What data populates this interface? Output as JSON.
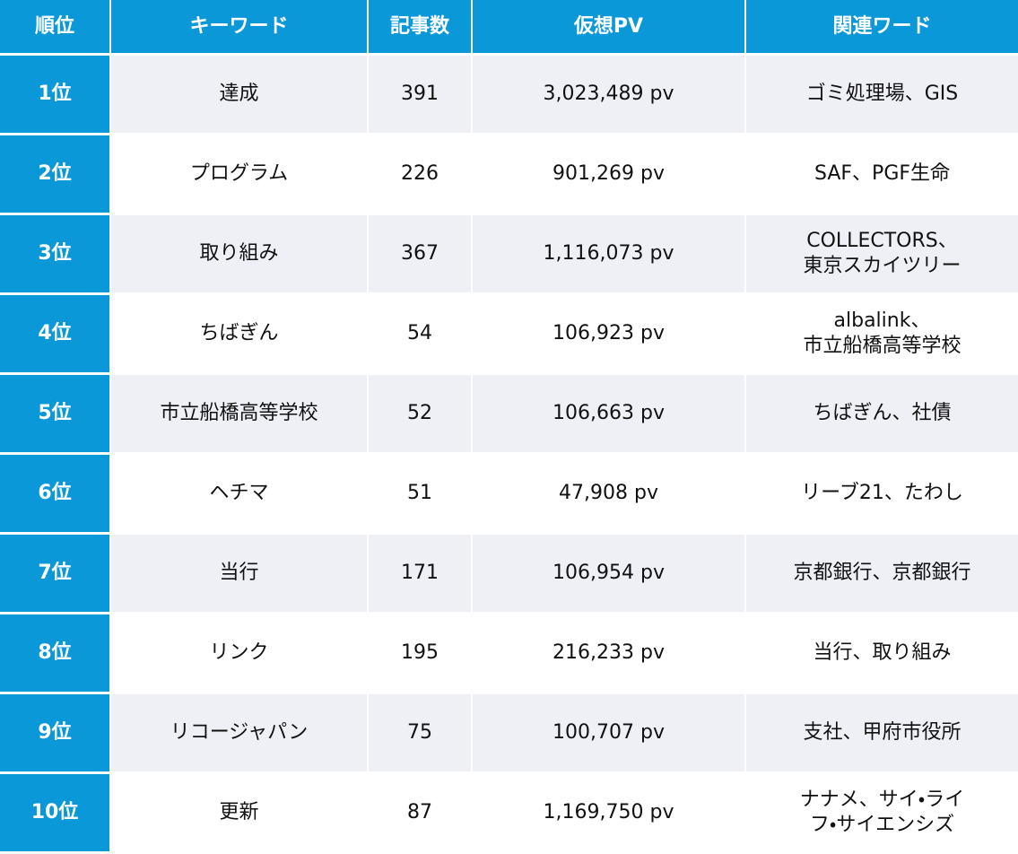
{
  "table": {
    "header": [
      "順位",
      "キーワード",
      "記事数",
      "仮想PV",
      "関連ワード"
    ],
    "rows": [
      [
        "1位",
        "達成",
        "391",
        "3,023,489 pv",
        "ゴミ処理場、GIS"
      ],
      [
        "2位",
        "プログラム",
        "226",
        "901,269 pv",
        "SAF、PGF生命"
      ],
      [
        "3位",
        "取り組み",
        "367",
        "1,116,073 pv",
        "COLLECTORS、\n東京スカイツリー"
      ],
      [
        "4位",
        "ちばぎん",
        "54",
        "106,923 pv",
        "albalink、\n市立船橋高等学校"
      ],
      [
        "5位",
        "市立船橋高等学校",
        "52",
        "106,663 pv",
        "ちばぎん、社債"
      ],
      [
        "6位",
        "ヘチマ",
        "51",
        "47,908 pv",
        "リーブ21、たわし"
      ],
      [
        "7位",
        "当行",
        "171",
        "106,954 pv",
        "京都銀行、京都銀行"
      ],
      [
        "8位",
        "リンク",
        "195",
        "216,233 pv",
        "当行、取り組み"
      ],
      [
        "9位",
        "リコージャパン",
        "75",
        "100,707 pv",
        "支社、甲府市役所"
      ],
      [
        "10位",
        "更新",
        "87",
        "1,169,750 pv",
        "ナナメ、サイ・ライ\nフ・サイエンシズ"
      ]
    ]
  }
}
